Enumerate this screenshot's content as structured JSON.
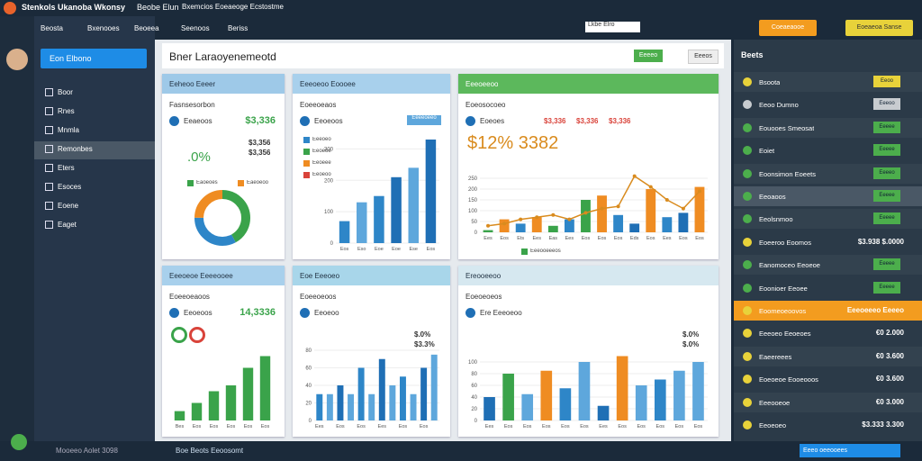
{
  "header": {
    "app_title": "Stenkols Ukanoba Wkonsy",
    "menu": [
      "Beobe Elun",
      "Bxemcios Eoeaeoge Ecstostme"
    ],
    "search": "Lkbe Elro",
    "action": "Coeaeaooe",
    "user": "Eoeaeoa Sanse"
  },
  "nav": {
    "tabs": [
      "Beosta",
      "Bxenooes",
      "Beoeea",
      "Seenoos",
      "Beriss"
    ]
  },
  "sidebar": {
    "button": "Eon Elbono",
    "items": [
      "Boor",
      "Rnes",
      "Mnmla",
      "Remonbes",
      "Eters",
      "Esoces",
      "Eoene",
      "Eaget"
    ]
  },
  "main": {
    "title": "Bner Laraoyenemeotd",
    "buttons": [
      "Eeeeo",
      "Eeeos"
    ]
  },
  "cards": [
    {
      "title": "Eeheoo Eeeer",
      "header_color": "#9ec9e8",
      "subtitle": "Fasnsesorbon",
      "stat_label": "Eeaeoos",
      "stat_value": "$3,336",
      "big": ".0%",
      "side": [
        "$3,356",
        "$3,356"
      ],
      "legend": [
        {
          "name": "Eaoeoes",
          "color": "#3aa34a"
        },
        {
          "name": "Eaeoeoo",
          "color": "#ef8c22"
        }
      ],
      "chart": {
        "type": "donut",
        "values": [
          42,
          33,
          25
        ],
        "colors": [
          "#3aa34a",
          "#2e86c8",
          "#ef8c22"
        ]
      }
    },
    {
      "title": "Eeeoeoo Eoooee",
      "header_color": "#a8d0ec",
      "subtitle": "Eoeeoeaos",
      "stat_label": "Eeoeoos",
      "button": "Eeeeoeeo",
      "legend": [
        {
          "name": "Eeeoeo",
          "color": "#2e86c8"
        },
        {
          "name": "Eeoeoe",
          "color": "#3aa34a"
        },
        {
          "name": "Eeoeee",
          "color": "#ef8c22"
        },
        {
          "name": "Eeoeoo",
          "color": "#d9433a"
        }
      ],
      "chart": {
        "type": "bar",
        "values": [
          70,
          130,
          150,
          210,
          240,
          330
        ],
        "colors": [
          "#2e86c8",
          "#5ea7dc",
          "#2e86c8",
          "#1f6fb5",
          "#5ea7dc",
          "#1f6fb5"
        ],
        "categories": [
          "Eos",
          "Eso",
          "Eoe",
          "Eoe",
          "Ese",
          "Eos"
        ],
        "ylim": [
          0,
          350
        ],
        "yticks": [
          0,
          100,
          200,
          300
        ]
      }
    },
    {
      "title": "Eeeoeeoo",
      "header_color": "#5cb85c",
      "subtitle": "Eoeosocoeo",
      "stat_label": "Eoeoes",
      "side": [
        "$3,336",
        "$3,336",
        "$3,336"
      ],
      "big": "$12% 3382",
      "legend": [
        {
          "name": "Eeeooeeeos",
          "color": "#3aa34a"
        }
      ],
      "chart": {
        "type": "combo",
        "values": [
          10,
          60,
          40,
          70,
          30,
          60,
          150,
          170,
          80,
          40,
          200,
          70,
          90,
          210
        ],
        "colors": [
          "#3aa34a",
          "#ef8c22",
          "#2e86c8",
          "#ef8c22",
          "#3aa34a",
          "#2e86c8",
          "#3aa34a",
          "#ef8c22",
          "#2e86c8",
          "#1f6fb5",
          "#ef8c22",
          "#2e86c8",
          "#1f6fb5",
          "#ef8c22"
        ],
        "line": [
          30,
          40,
          60,
          70,
          80,
          60,
          90,
          110,
          120,
          260,
          210,
          150,
          110,
          190
        ],
        "line_color": "#d98b1e",
        "categories": [
          "Ees",
          "Eos",
          "Ets",
          "Ees",
          "Eas",
          "Ees",
          "Eos",
          "Eos",
          "Eos",
          "Eds",
          "Eos",
          "Ees",
          "Eos",
          "Eos"
        ],
        "ylim": [
          0,
          300
        ],
        "yticks": [
          0,
          50,
          100,
          150,
          200,
          250
        ]
      }
    },
    {
      "title": "Eeeoeoe Eeeeooee",
      "header_color": "#a8d0ec",
      "subtitle": "Eoeeoeaoos",
      "stat_label": "Eeoeoos",
      "stat_value": "14,3336",
      "chart": {
        "type": "bar",
        "values": [
          8,
          15,
          25,
          30,
          45,
          55
        ],
        "colors": [
          "#3aa34a",
          "#3aa34a",
          "#3aa34a",
          "#3aa34a",
          "#3aa34a",
          "#3aa34a"
        ],
        "categories": [
          "Bes",
          "Eos",
          "Eos",
          "Eos",
          "Eos",
          "Eos"
        ],
        "ylim": [
          0,
          60
        ]
      }
    },
    {
      "title": "Eoe Eeeoeo",
      "header_color": "#a8d6ea",
      "subtitle": "Eoeeoeoos",
      "stat_label": "Eeoeoo",
      "side": [
        "$.0%",
        "$3.3%"
      ],
      "chart": {
        "type": "bar",
        "values": [
          30,
          30,
          40,
          30,
          60,
          30,
          70,
          40,
          50,
          30,
          60,
          75
        ],
        "colors": [
          "#2e86c8",
          "#5ea7dc",
          "#1f6fb5",
          "#5ea7dc",
          "#2e86c8",
          "#5ea7dc",
          "#1f6fb5",
          "#5ea7dc",
          "#2e86c8",
          "#5ea7dc",
          "#1f6fb5",
          "#5ea7dc"
        ],
        "categories": [
          "Ees",
          null,
          "Eos",
          null,
          "Eos",
          null,
          "Ees",
          null,
          "Eos",
          null,
          "Eos",
          null
        ],
        "ylim": [
          0,
          80
        ],
        "yticks": [
          0,
          20,
          40,
          60,
          80
        ]
      }
    },
    {
      "title": "Ereooeeoo",
      "header_color": "#d6e8f0",
      "subtitle": "Eoeoeoeos",
      "stat_label": "Ere Eeeoeoo",
      "side": [
        "$.0%",
        "$.0%"
      ],
      "chart": {
        "type": "bar",
        "values": [
          40,
          80,
          45,
          85,
          55,
          100,
          25,
          110,
          60,
          70,
          85,
          100
        ],
        "colors": [
          "#1f6fb5",
          "#3aa34a",
          "#5ea7dc",
          "#ef8c22",
          "#2e86c8",
          "#5ea7dc",
          "#1f6fb5",
          "#ef8c22",
          "#5ea7dc",
          "#2e86c8",
          "#5ea7dc",
          "#5ea7dc"
        ],
        "categories": [
          "Ees",
          "Eos",
          "Eos",
          "Eos",
          "Eos",
          "Eos",
          "Ees",
          "Eos",
          "Eos",
          "Eos",
          "Eos",
          "Eos"
        ],
        "ylim": [
          0,
          120
        ],
        "yticks": [
          0,
          20,
          40,
          60,
          80,
          100
        ]
      }
    }
  ],
  "right_panel": {
    "title": "Beets",
    "rows": [
      {
        "label": "Bsoota",
        "button": "Eeoo",
        "color": "#e8d23a"
      },
      {
        "label": "Eeoo Dumno",
        "button": "Eeeoo",
        "color": "#c8ccd0"
      },
      {
        "label": "Eouooes Smeosat",
        "button": "Eeeee",
        "color": "#4cae4c"
      },
      {
        "label": "Eoiet",
        "button": "Eeeee",
        "color": "#4cae4c"
      },
      {
        "label": "Eoonsimon Eoeets",
        "button": "Eeeeo",
        "color": "#4cae4c"
      },
      {
        "label": "Eeoaoos",
        "button": "Eeeee",
        "color": "#4cae4c",
        "highlight": "#4a5866"
      },
      {
        "label": "Eeolsnmoo",
        "button": "Eeeee",
        "color": "#4cae4c"
      },
      {
        "label": "Eoeeroo Eoomos",
        "value": "$3.938 $.0000"
      },
      {
        "label": "Eanomoceo Eeoeoe",
        "button": "Eeeee",
        "color": "#4cae4c"
      },
      {
        "label": "Eoonioer Eeoee",
        "button": "Eeeee",
        "color": "#4cae4c"
      },
      {
        "label": "Eoomeoeoovos",
        "value": "Eeeoeeeo Eeeeo",
        "highlight": "#f39c1f"
      },
      {
        "label": "Eeeoeo Eeoeoes",
        "value": "€0 2.000"
      },
      {
        "label": "Eaeereees",
        "value": "€0 3.600"
      },
      {
        "label": "Eoeoeoe Eooeooos",
        "value": "€0 3.600"
      },
      {
        "label": "Eeeooeoe",
        "value": "€0 3.000"
      },
      {
        "label": "Eeoeoeo",
        "value": "$3.333 3.300"
      }
    ]
  },
  "footer": {
    "status": "Mooeeo Aolet 3098",
    "tab": "Boe Beots Eeoosomt",
    "right": "Eeeo oeeooees"
  }
}
